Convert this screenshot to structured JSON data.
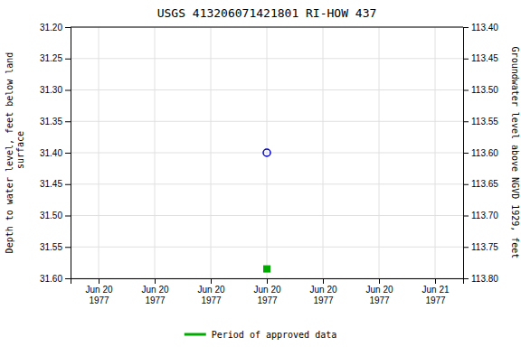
{
  "chart_data": {
    "type": "scatter",
    "title": "USGS 413206071421801 RI-HOW  437",
    "y_label": "Depth to water level, feet below land\n surface",
    "y2_label": "Groundwater level above NGVD 1929, feet",
    "categories": [
      "Jun 20\n1977",
      "Jun 20\n1977",
      "Jun 20\n1977",
      "Jun 20\n1977",
      "Jun 20\n1977",
      "Jun 20\n1977",
      "Jun 21\n1977"
    ],
    "series": [
      {
        "color": "#0000cc",
        "marker": "circle",
        "values": [
          null,
          null,
          null,
          31.4,
          null,
          null,
          null
        ]
      },
      {
        "name": "Period of approved data",
        "color": "#00aa00",
        "marker": "square",
        "values": [
          null,
          null,
          null,
          31.585,
          null,
          null,
          null
        ]
      }
    ],
    "ylim": [
      31.6,
      31.2
    ],
    "yticks": [
      {
        "value": 31.2,
        "label": "31.20"
      },
      31.25,
      {
        "value": 31.3,
        "label": "31.30"
      },
      31.35,
      {
        "value": 31.4,
        "label": "31.40"
      },
      31.45,
      {
        "value": 31.5,
        "label": "31.50"
      },
      31.55,
      {
        "value": 31.6,
        "label": "31.60"
      }
    ],
    "y2lim": [
      113.8,
      113.4
    ],
    "y2ticks": [
      {
        "value": 113.4,
        "label": "113.40"
      },
      113.45,
      {
        "value": 113.5,
        "label": "113.50"
      },
      113.55,
      {
        "value": 113.6,
        "label": "113.60"
      },
      113.65,
      {
        "value": 113.7,
        "label": "113.70"
      },
      113.75,
      {
        "value": 113.8,
        "label": "113.80"
      }
    ],
    "grid": true,
    "legend": "bottom"
  }
}
